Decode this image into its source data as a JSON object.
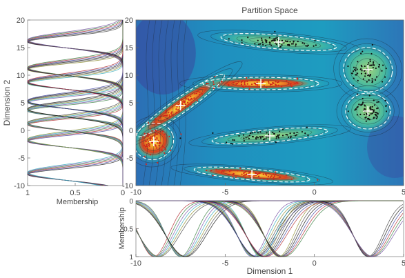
{
  "title": "Partition Space",
  "chart_data": [
    {
      "type": "heatmap",
      "panel": "main",
      "title": "Partition Space",
      "xlim": [
        -10,
        5
      ],
      "ylim": [
        -10,
        20
      ],
      "xticks": [
        -10,
        -5,
        0,
        5
      ],
      "yticks": [
        -10,
        -5,
        0,
        5,
        10,
        15,
        20
      ],
      "grid": false,
      "colormap": "parula",
      "centroids": [
        {
          "x": -9.0,
          "y": -2.0
        },
        {
          "x": -7.5,
          "y": 4.5
        },
        {
          "x": -3.0,
          "y": 8.5
        },
        {
          "x": -2.5,
          "y": -1.0
        },
        {
          "x": -3.5,
          "y": -8.0
        },
        {
          "x": -2.0,
          "y": 16.0
        },
        {
          "x": 3.0,
          "y": 11.0
        },
        {
          "x": 3.0,
          "y": 3.5
        }
      ]
    },
    {
      "type": "line",
      "panel": "left",
      "xlabel": "Membership",
      "ylabel": "Dimension 2",
      "xlim": [
        1,
        0
      ],
      "ylim": [
        -10,
        20
      ],
      "xticks": [
        1,
        0.5,
        0
      ],
      "xtick_labels": [
        "1",
        "0.5",
        "0"
      ],
      "yticks": [
        -10,
        -5,
        0,
        5,
        10,
        15,
        20
      ],
      "peaks": [
        -8,
        -2,
        1,
        3.5,
        5,
        8.5,
        11,
        16
      ]
    },
    {
      "type": "line",
      "panel": "bottom",
      "xlabel": "Dimension 1",
      "ylabel": "Membership",
      "xlim": [
        -10,
        5
      ],
      "ylim": [
        0,
        1
      ],
      "xticks": [
        -10,
        -5,
        0,
        5
      ],
      "yticks": [
        0,
        0.5,
        1
      ],
      "peaks": [
        -9,
        -7.5,
        -3.5,
        -3,
        -2,
        3
      ]
    }
  ],
  "colors": {
    "low": "#3b3f9a",
    "mid": "#26a9b4",
    "high": "#f2c53a",
    "peak": "#d93b1e",
    "contour": "#1e2a3a",
    "dashed": "#ffffff"
  }
}
